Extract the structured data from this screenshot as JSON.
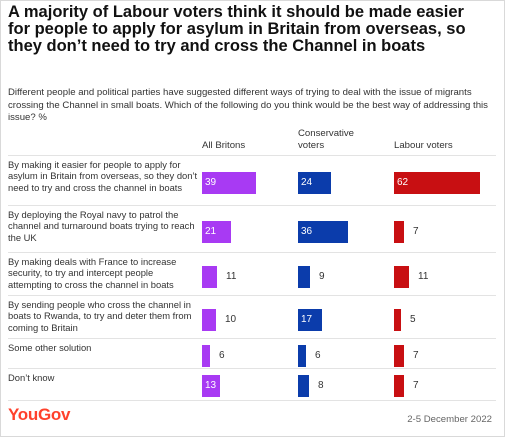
{
  "title": "A majority of Labour voters think it should be made easier for people to apply for asylum in Britain from overseas, so they don’t need to try and cross the Channel in boats",
  "subtitle": "Different people and political parties have suggested different ways of trying to deal with the issue of migrants crossing the Channel in small boats. Which of the following do you think would be the best way of addressing this issue? %",
  "footer": {
    "brand": "YouGov",
    "date": "2-5 December 2022"
  },
  "colors": {
    "all_britons": "#a83af3",
    "conservative": "#0b3cab",
    "labour": "#c80f12",
    "brand": "#ff412c"
  },
  "chart_data": {
    "type": "bar",
    "title": "A majority of Labour voters think it should be made easier for people to apply for asylum in Britain from overseas, so they don’t need to try and cross the Channel in boats",
    "categories": [
      "By making it easier for people to apply for asylum in Britain from overseas, so they don’t need to try and cross the channel in boats",
      "By deploying the Royal navy to patrol the channel and turnaround boats trying to reach the UK",
      "By making deals with France to increase security, to try and intercept people attempting to cross the channel in boats",
      "By sending people who cross the channel in boats to Rwanda, to try and deter them from coming to Britain",
      "Some other solution",
      "Don’t know"
    ],
    "series": [
      {
        "name": "All Britons",
        "values": [
          39,
          21,
          11,
          10,
          6,
          13
        ]
      },
      {
        "name": "Conservative voters",
        "values": [
          24,
          36,
          9,
          17,
          6,
          8
        ]
      },
      {
        "name": "Labour voters",
        "values": [
          62,
          7,
          11,
          5,
          7,
          7
        ]
      }
    ],
    "xlim": [
      0,
      62
    ],
    "grid": false,
    "legend": "column headers"
  }
}
